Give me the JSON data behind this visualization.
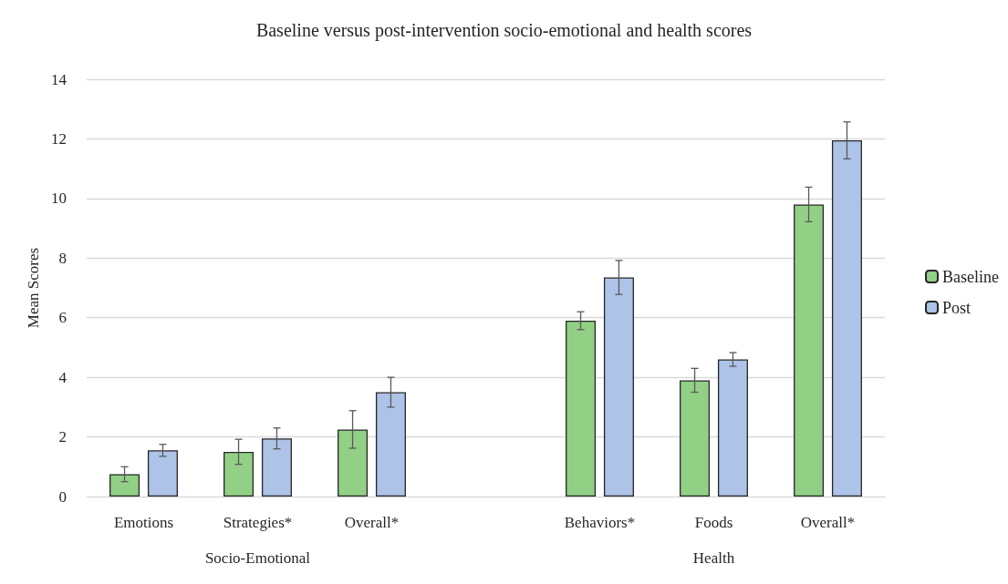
{
  "chart_data": {
    "type": "bar",
    "title": "Baseline versus post-intervention socio-emotional and health scores",
    "ylabel": "Mean Scores",
    "categories": [
      "Emotions",
      "Strategies*",
      "Overall*",
      null,
      "Behaviors*",
      "Foods",
      "Overall*"
    ],
    "series": [
      {
        "name": "Baseline",
        "color": "#92d086",
        "values": [
          0.75,
          1.5,
          2.25,
          null,
          5.9,
          3.9,
          9.8
        ],
        "errors": [
          0.25,
          0.42,
          0.63,
          null,
          0.3,
          0.4,
          0.58
        ]
      },
      {
        "name": "Post",
        "color": "#aec3e8",
        "values": [
          1.55,
          1.95,
          3.5,
          null,
          7.35,
          4.6,
          11.95
        ],
        "errors": [
          0.2,
          0.35,
          0.5,
          null,
          0.57,
          0.23,
          0.62
        ]
      }
    ],
    "annotations": [
      "Socio-Emotional",
      "Health"
    ],
    "ylim": [
      0,
      14
    ],
    "yticks": [
      0,
      2,
      4,
      6,
      8,
      10,
      12,
      14
    ],
    "grid": "y",
    "legend": "right"
  }
}
